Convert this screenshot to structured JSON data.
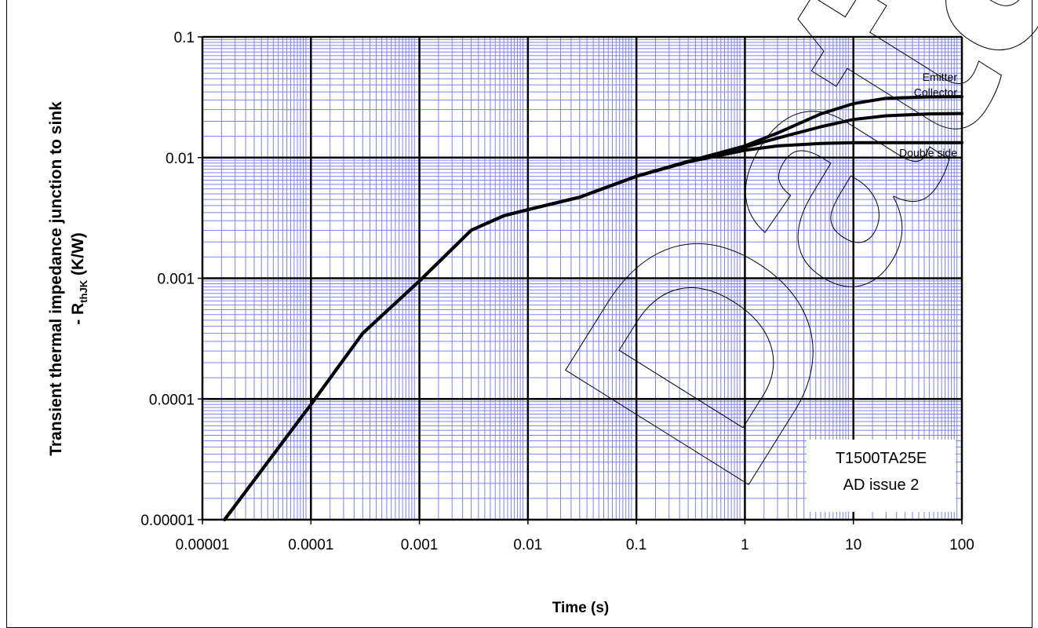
{
  "chart_data": {
    "type": "line",
    "xlabel": "Time (s)",
    "ylabel_line1": "Transient thermal impedance junction to sink",
    "ylabel_line2": "- R",
    "ylabel_sub": "thJK",
    "ylabel_unit": " (K/W)",
    "xscale": "log",
    "yscale": "log",
    "xlim": [
      1e-05,
      100
    ],
    "ylim": [
      1e-05,
      0.1
    ],
    "grid": true,
    "x_ticks": [
      "0.00001",
      "0.0001",
      "0.001",
      "0.01",
      "0.1",
      "1",
      "10",
      "100"
    ],
    "y_ticks": [
      "0.1",
      "0.01",
      "0.001",
      "0.0001",
      "0.00001"
    ],
    "annotation_lines": [
      "T1500TA25E",
      "AD issue 2"
    ],
    "watermark": "Data",
    "colors": {
      "grid_major": "#000000",
      "grid_minor": "#8080ff",
      "line": "#000000"
    },
    "series": [
      {
        "name": "Emitter",
        "x": [
          1.6e-05,
          0.0001,
          0.0003,
          0.001,
          0.003,
          0.006,
          0.01,
          0.03,
          0.1,
          0.3,
          1,
          2,
          5,
          10,
          20,
          50,
          100
        ],
        "y": [
          1e-05,
          9e-05,
          0.00035,
          0.00095,
          0.0025,
          0.0033,
          0.0037,
          0.0047,
          0.007,
          0.0093,
          0.0125,
          0.016,
          0.023,
          0.028,
          0.031,
          0.0318,
          0.032
        ]
      },
      {
        "name": "Collector",
        "x": [
          1.6e-05,
          0.0001,
          0.0003,
          0.001,
          0.003,
          0.006,
          0.01,
          0.03,
          0.1,
          0.3,
          1,
          2,
          5,
          10,
          20,
          50,
          100
        ],
        "y": [
          1e-05,
          9e-05,
          0.00035,
          0.00095,
          0.0025,
          0.0033,
          0.0037,
          0.0047,
          0.007,
          0.0093,
          0.0122,
          0.0145,
          0.018,
          0.0207,
          0.0222,
          0.023,
          0.0232
        ]
      },
      {
        "name": "Double side",
        "x": [
          1.6e-05,
          0.0001,
          0.0003,
          0.001,
          0.003,
          0.006,
          0.01,
          0.03,
          0.1,
          0.3,
          1,
          2,
          5,
          10,
          20,
          50,
          100
        ],
        "y": [
          1e-05,
          9e-05,
          0.00035,
          0.00095,
          0.0025,
          0.0033,
          0.0037,
          0.0047,
          0.007,
          0.0092,
          0.0115,
          0.0125,
          0.0131,
          0.0133,
          0.0133,
          0.0133,
          0.0133
        ]
      }
    ]
  }
}
